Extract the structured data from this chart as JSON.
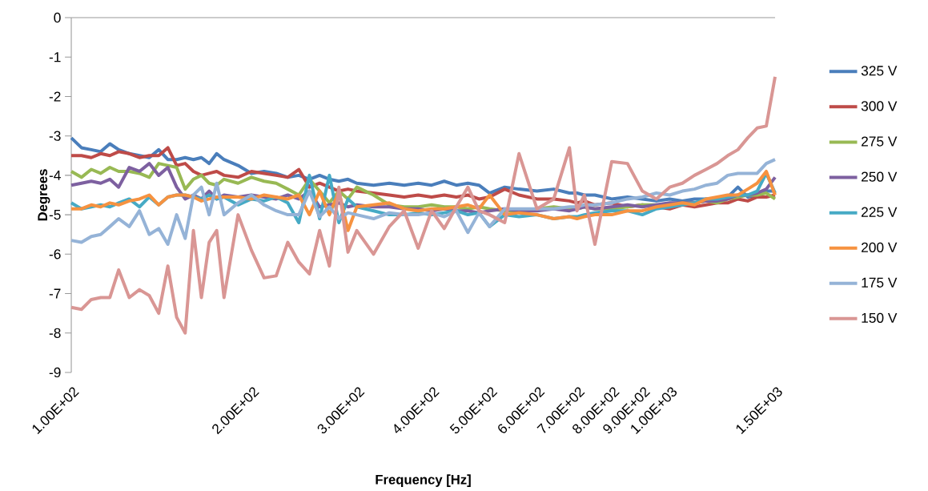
{
  "chart_data": {
    "type": "line",
    "xlabel": "Frequency [Hz]",
    "ylabel": "Degrees",
    "log": "x",
    "x": [
      100,
      104,
      108,
      112,
      116,
      120,
      125,
      130,
      135,
      140,
      145,
      150,
      155,
      160,
      165,
      170,
      175,
      180,
      190,
      200,
      210,
      220,
      230,
      240,
      250,
      260,
      270,
      280,
      290,
      300,
      320,
      340,
      360,
      380,
      400,
      420,
      440,
      460,
      480,
      500,
      530,
      560,
      600,
      640,
      680,
      700,
      720,
      750,
      800,
      850,
      900,
      950,
      1000,
      1050,
      1100,
      1150,
      1200,
      1250,
      1300,
      1350,
      1400,
      1450,
      1500
    ],
    "xlim": [
      100,
      1500
    ],
    "ylim": [
      -9,
      0
    ],
    "xticks": [
      {
        "value": 100,
        "label": "1.00E+02"
      },
      {
        "value": 200,
        "label": "2.00E+02"
      },
      {
        "value": 300,
        "label": "3.00E+02"
      },
      {
        "value": 400,
        "label": "4.00E+02"
      },
      {
        "value": 500,
        "label": "5.00E+02"
      },
      {
        "value": 600,
        "label": "6.00E+02"
      },
      {
        "value": 700,
        "label": "7.00E+02"
      },
      {
        "value": 800,
        "label": "8.00E+02"
      },
      {
        "value": 900,
        "label": "9.00E+02"
      },
      {
        "value": 1000,
        "label": "1.00E+03"
      },
      {
        "value": 1500,
        "label": "1.50E+03"
      }
    ],
    "yticks": [
      0,
      -1,
      -2,
      -3,
      -4,
      -5,
      -6,
      -7,
      -8,
      -9
    ],
    "grid": false,
    "legend": "right",
    "marker": "none",
    "line_style": "solid",
    "series": [
      {
        "name": "325 V",
        "color": "#4a7ebb",
        "values": [
          -3.05,
          -3.3,
          -3.35,
          -3.4,
          -3.2,
          -3.35,
          -3.45,
          -3.5,
          -3.55,
          -3.35,
          -3.6,
          -3.6,
          -3.55,
          -3.6,
          -3.55,
          -3.7,
          -3.45,
          -3.6,
          -3.75,
          -3.95,
          -3.9,
          -3.95,
          -4.05,
          -4.0,
          -4.1,
          -4.0,
          -4.1,
          -4.15,
          -4.1,
          -4.2,
          -4.25,
          -4.2,
          -4.25,
          -4.2,
          -4.25,
          -4.15,
          -4.25,
          -4.2,
          -4.25,
          -4.45,
          -4.3,
          -4.35,
          -4.4,
          -4.35,
          -4.45,
          -4.45,
          -4.5,
          -4.5,
          -4.6,
          -4.55,
          -4.6,
          -4.65,
          -4.6,
          -4.65,
          -4.6,
          -4.6,
          -4.6,
          -4.55,
          -4.3,
          -4.55,
          -4.5,
          -4.4,
          -4.4
        ]
      },
      {
        "name": "300 V",
        "color": "#be4b48",
        "values": [
          -3.5,
          -3.5,
          -3.55,
          -3.45,
          -3.5,
          -3.4,
          -3.45,
          -3.55,
          -3.5,
          -3.5,
          -3.3,
          -3.75,
          -3.7,
          -3.9,
          -4.0,
          -3.95,
          -3.9,
          -4.0,
          -4.05,
          -3.9,
          -3.95,
          -4.0,
          -4.05,
          -3.85,
          -4.3,
          -4.2,
          -4.3,
          -4.4,
          -4.35,
          -4.4,
          -4.45,
          -4.5,
          -4.55,
          -4.5,
          -4.55,
          -4.5,
          -4.55,
          -4.5,
          -4.6,
          -4.55,
          -4.35,
          -4.5,
          -4.6,
          -4.6,
          -4.65,
          -4.7,
          -4.65,
          -4.75,
          -4.7,
          -4.8,
          -4.75,
          -4.8,
          -4.85,
          -4.75,
          -4.8,
          -4.75,
          -4.7,
          -4.7,
          -4.6,
          -4.65,
          -4.55,
          -4.55,
          -4.5
        ]
      },
      {
        "name": "275 V",
        "color": "#98b954",
        "values": [
          -3.9,
          -4.05,
          -3.85,
          -3.95,
          -3.8,
          -3.9,
          -3.9,
          -3.95,
          -4.05,
          -3.7,
          -3.75,
          -3.8,
          -4.35,
          -4.1,
          -4.0,
          -4.2,
          -4.25,
          -4.1,
          -4.2,
          -4.05,
          -4.15,
          -4.2,
          -4.35,
          -4.5,
          -4.1,
          -4.4,
          -4.7,
          -4.4,
          -4.6,
          -4.3,
          -4.5,
          -4.75,
          -4.8,
          -4.8,
          -4.75,
          -4.8,
          -4.8,
          -4.85,
          -4.8,
          -4.85,
          -4.9,
          -4.9,
          -4.85,
          -4.8,
          -4.85,
          -4.85,
          -4.8,
          -4.85,
          -4.85,
          -4.8,
          -4.75,
          -4.75,
          -4.8,
          -4.7,
          -4.7,
          -4.65,
          -4.7,
          -4.6,
          -4.55,
          -4.5,
          -4.5,
          -4.45,
          -4.6
        ]
      },
      {
        "name": "250 V",
        "color": "#7d60a0",
        "values": [
          -4.25,
          -4.2,
          -4.15,
          -4.2,
          -4.1,
          -4.3,
          -3.8,
          -3.9,
          -3.7,
          -4.0,
          -3.8,
          -4.3,
          -4.6,
          -4.5,
          -4.6,
          -4.4,
          -4.6,
          -4.5,
          -4.55,
          -4.5,
          -4.55,
          -4.6,
          -4.5,
          -4.6,
          -4.4,
          -4.8,
          -4.75,
          -4.7,
          -4.8,
          -4.75,
          -4.8,
          -4.8,
          -4.85,
          -4.85,
          -4.9,
          -4.85,
          -4.9,
          -4.9,
          -4.95,
          -4.9,
          -4.85,
          -4.9,
          -4.9,
          -4.85,
          -4.9,
          -4.85,
          -4.8,
          -4.85,
          -4.8,
          -4.75,
          -4.8,
          -4.75,
          -4.7,
          -4.7,
          -4.7,
          -4.65,
          -4.65,
          -4.6,
          -4.5,
          -4.5,
          -4.45,
          -4.35,
          -4.05
        ]
      },
      {
        "name": "225 V",
        "color": "#46aac5",
        "values": [
          -4.7,
          -4.85,
          -4.8,
          -4.75,
          -4.8,
          -4.7,
          -4.6,
          -4.8,
          -4.55,
          -4.75,
          -4.55,
          -4.5,
          -4.5,
          -4.55,
          -4.6,
          -4.5,
          -4.6,
          -4.55,
          -4.75,
          -4.6,
          -4.65,
          -4.55,
          -4.7,
          -5.2,
          -4.0,
          -5.1,
          -4.0,
          -5.2,
          -4.6,
          -4.8,
          -4.9,
          -5.0,
          -5.0,
          -4.95,
          -5.0,
          -4.95,
          -4.9,
          -5.0,
          -4.95,
          -5.3,
          -5.0,
          -5.05,
          -5.0,
          -5.1,
          -5.05,
          -5.05,
          -5.0,
          -4.95,
          -4.9,
          -4.9,
          -5.0,
          -4.85,
          -4.8,
          -4.75,
          -4.7,
          -4.6,
          -4.6,
          -4.55,
          -4.5,
          -4.5,
          -4.4,
          -3.95,
          -4.45
        ]
      },
      {
        "name": "200 V",
        "color": "#f69240",
        "values": [
          -4.85,
          -4.85,
          -4.75,
          -4.8,
          -4.7,
          -4.75,
          -4.65,
          -4.6,
          -4.5,
          -4.75,
          -4.55,
          -4.5,
          -4.5,
          -4.55,
          -4.65,
          -4.6,
          -4.55,
          -4.55,
          -4.55,
          -4.6,
          -4.5,
          -4.55,
          -4.6,
          -4.5,
          -5.0,
          -4.4,
          -5.0,
          -4.4,
          -5.4,
          -4.8,
          -4.75,
          -4.7,
          -4.85,
          -4.9,
          -4.85,
          -4.85,
          -4.8,
          -4.75,
          -4.85,
          -4.5,
          -5.0,
          -4.95,
          -5.0,
          -5.1,
          -5.05,
          -5.1,
          -5.05,
          -5.0,
          -5.0,
          -4.9,
          -4.9,
          -4.8,
          -4.75,
          -4.7,
          -4.75,
          -4.6,
          -4.55,
          -4.5,
          -4.5,
          -4.35,
          -4.2,
          -3.9,
          -4.5
        ]
      },
      {
        "name": "175 V",
        "color": "#95b3d7",
        "values": [
          -5.65,
          -5.7,
          -5.55,
          -5.5,
          -5.3,
          -5.1,
          -5.3,
          -4.9,
          -5.5,
          -5.35,
          -5.75,
          -5.0,
          -5.6,
          -4.5,
          -4.3,
          -5.0,
          -4.2,
          -5.0,
          -4.7,
          -4.5,
          -4.75,
          -4.9,
          -5.0,
          -5.0,
          -4.4,
          -5.05,
          -4.8,
          -5.1,
          -4.95,
          -5.0,
          -5.1,
          -4.95,
          -5.0,
          -5.0,
          -4.95,
          -5.05,
          -4.9,
          -5.45,
          -4.95,
          -5.3,
          -4.85,
          -4.85,
          -4.85,
          -4.85,
          -4.8,
          -4.8,
          -4.75,
          -4.75,
          -4.7,
          -4.6,
          -4.55,
          -4.45,
          -4.5,
          -4.4,
          -4.35,
          -4.25,
          -4.2,
          -4.0,
          -3.95,
          -3.95,
          -3.95,
          -3.7,
          -3.6
        ]
      },
      {
        "name": "150 V",
        "color": "#d99694",
        "values": [
          -7.35,
          -7.4,
          -7.15,
          -7.1,
          -7.1,
          -6.4,
          -7.1,
          -6.9,
          -7.05,
          -7.5,
          -6.3,
          -7.6,
          -8.0,
          -5.4,
          -7.1,
          -5.7,
          -5.4,
          -7.1,
          -5.0,
          -5.9,
          -6.6,
          -6.55,
          -5.7,
          -6.2,
          -6.5,
          -5.4,
          -6.3,
          -4.3,
          -5.95,
          -5.4,
          -6.0,
          -5.3,
          -4.9,
          -5.85,
          -4.9,
          -5.35,
          -4.8,
          -4.3,
          -4.9,
          -5.0,
          -5.2,
          -3.45,
          -4.85,
          -4.6,
          -3.3,
          -4.9,
          -4.5,
          -5.75,
          -3.65,
          -3.7,
          -4.4,
          -4.6,
          -4.3,
          -4.2,
          -4.0,
          -3.85,
          -3.7,
          -3.5,
          -3.35,
          -3.05,
          -2.8,
          -2.75,
          -1.5
        ]
      }
    ]
  }
}
